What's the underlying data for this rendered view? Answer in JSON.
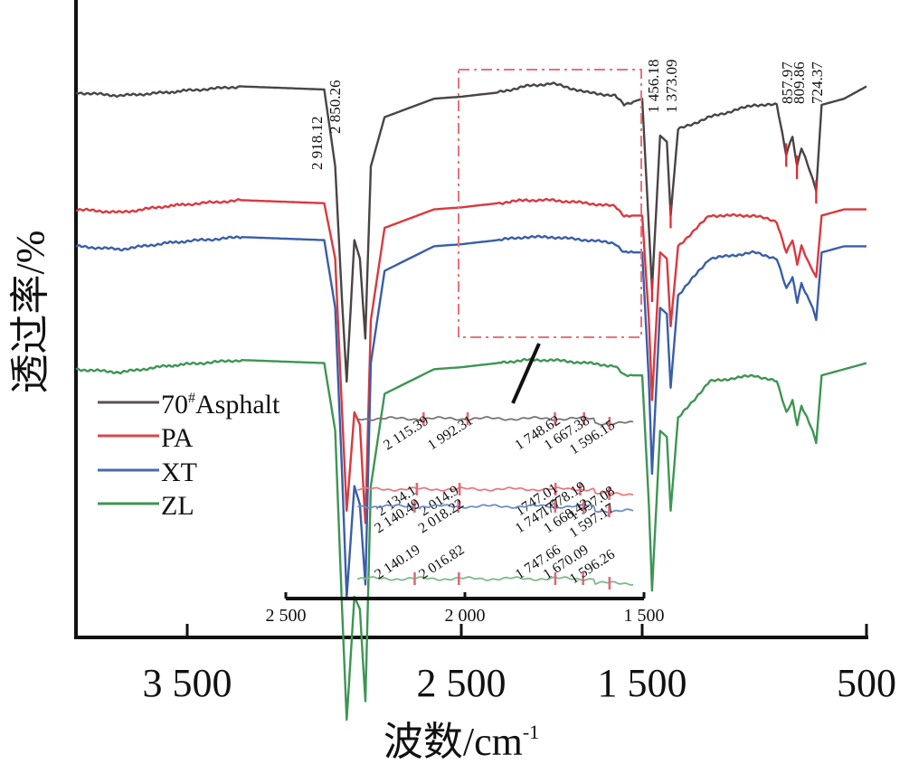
{
  "chart_data": {
    "type": "line",
    "title": "",
    "xlabel": "波数/cm⁻¹",
    "xlabel_main": "波数/cm",
    "xlabel_sup": "-1",
    "ylabel": "透过率/%",
    "x_reversed": true,
    "xlim": [
      4000,
      500
    ],
    "x_ticks": [
      3500,
      2500,
      1500,
      500
    ],
    "x_tick_labels": [
      "3 500",
      "2 500",
      "1 500",
      "500"
    ],
    "y_ticks": [],
    "grid": false,
    "legend_position": "lower-left",
    "series": [
      {
        "name": "70#Asphalt",
        "label_main": "70",
        "label_sup": "#",
        "label_rest": "Asphalt",
        "color": "#4a4444",
        "baseline": 0.82,
        "points": [
          [
            4000,
            0.82
          ],
          [
            3800,
            0.815
          ],
          [
            3600,
            0.82
          ],
          [
            3300,
            0.83
          ],
          [
            3000,
            0.825
          ],
          [
            2960,
            0.7
          ],
          [
            2935,
            0.48
          ],
          [
            2918.12,
            0.35
          ],
          [
            2890,
            0.58
          ],
          [
            2870,
            0.55
          ],
          [
            2850.26,
            0.42
          ],
          [
            2830,
            0.7
          ],
          [
            2780,
            0.78
          ],
          [
            2600,
            0.81
          ],
          [
            2300,
            0.82
          ],
          [
            2150,
            0.83
          ],
          [
            2000,
            0.835
          ],
          [
            1800,
            0.82
          ],
          [
            1650,
            0.815
          ],
          [
            1600,
            0.8
          ],
          [
            1500,
            0.81
          ],
          [
            1470,
            0.6
          ],
          [
            1456.18,
            0.5
          ],
          [
            1420,
            0.75
          ],
          [
            1390,
            0.74
          ],
          [
            1373.09,
            0.62
          ],
          [
            1340,
            0.76
          ],
          [
            1200,
            0.78
          ],
          [
            1000,
            0.8
          ],
          [
            900,
            0.8
          ],
          [
            857.97,
            0.72
          ],
          [
            830,
            0.75
          ],
          [
            809.86,
            0.7
          ],
          [
            790,
            0.73
          ],
          [
            740,
            0.68
          ],
          [
            724.37,
            0.66
          ],
          [
            700,
            0.8
          ],
          [
            600,
            0.81
          ],
          [
            500,
            0.83
          ]
        ],
        "annotated_peaks": [
          "2 918.12",
          "2 850.26",
          "1 456.18",
          "1 373.09",
          "857.97",
          "809.86",
          "724.37"
        ]
      },
      {
        "name": "PA",
        "color": "#d9393e",
        "points": [
          [
            4000,
            0.63
          ],
          [
            3800,
            0.625
          ],
          [
            3600,
            0.635
          ],
          [
            3300,
            0.645
          ],
          [
            3000,
            0.64
          ],
          [
            2960,
            0.55
          ],
          [
            2935,
            0.3
          ],
          [
            2918,
            0.14
          ],
          [
            2890,
            0.3
          ],
          [
            2870,
            0.28
          ],
          [
            2850,
            0.12
          ],
          [
            2830,
            0.45
          ],
          [
            2780,
            0.6
          ],
          [
            2600,
            0.63
          ],
          [
            2300,
            0.64
          ],
          [
            2150,
            0.645
          ],
          [
            2000,
            0.645
          ],
          [
            1800,
            0.64
          ],
          [
            1650,
            0.635
          ],
          [
            1600,
            0.62
          ],
          [
            1500,
            0.62
          ],
          [
            1470,
            0.45
          ],
          [
            1456,
            0.32
          ],
          [
            1420,
            0.56
          ],
          [
            1390,
            0.55
          ],
          [
            1373,
            0.44
          ],
          [
            1340,
            0.57
          ],
          [
            1200,
            0.62
          ],
          [
            1000,
            0.62
          ],
          [
            900,
            0.61
          ],
          [
            857,
            0.56
          ],
          [
            830,
            0.58
          ],
          [
            809,
            0.54
          ],
          [
            790,
            0.57
          ],
          [
            740,
            0.53
          ],
          [
            724,
            0.52
          ],
          [
            700,
            0.62
          ],
          [
            600,
            0.63
          ],
          [
            500,
            0.63
          ]
        ]
      },
      {
        "name": "XT",
        "color": "#3a5ea8",
        "points": [
          [
            4000,
            0.57
          ],
          [
            3800,
            0.565
          ],
          [
            3600,
            0.575
          ],
          [
            3300,
            0.585
          ],
          [
            3000,
            0.58
          ],
          [
            2960,
            0.47
          ],
          [
            2935,
            0.2
          ],
          [
            2918,
            0.0
          ],
          [
            2890,
            0.18
          ],
          [
            2870,
            0.15
          ],
          [
            2850,
            0.02
          ],
          [
            2830,
            0.38
          ],
          [
            2780,
            0.53
          ],
          [
            2600,
            0.57
          ],
          [
            2300,
            0.58
          ],
          [
            2150,
            0.585
          ],
          [
            2000,
            0.585
          ],
          [
            1800,
            0.58
          ],
          [
            1650,
            0.575
          ],
          [
            1600,
            0.56
          ],
          [
            1500,
            0.56
          ],
          [
            1470,
            0.35
          ],
          [
            1456,
            0.2
          ],
          [
            1420,
            0.47
          ],
          [
            1390,
            0.46
          ],
          [
            1373,
            0.34
          ],
          [
            1340,
            0.49
          ],
          [
            1200,
            0.55
          ],
          [
            1000,
            0.56
          ],
          [
            900,
            0.55
          ],
          [
            857,
            0.5
          ],
          [
            830,
            0.52
          ],
          [
            809,
            0.48
          ],
          [
            790,
            0.51
          ],
          [
            740,
            0.47
          ],
          [
            724,
            0.45
          ],
          [
            700,
            0.56
          ],
          [
            600,
            0.57
          ],
          [
            500,
            0.57
          ]
        ]
      },
      {
        "name": "ZL",
        "color": "#3e9554",
        "points": [
          [
            4000,
            0.37
          ],
          [
            3800,
            0.365
          ],
          [
            3600,
            0.375
          ],
          [
            3300,
            0.385
          ],
          [
            3000,
            0.38
          ],
          [
            2960,
            0.27
          ],
          [
            2935,
            -0.02
          ],
          [
            2918,
            -0.2
          ],
          [
            2890,
            0.0
          ],
          [
            2870,
            -0.02
          ],
          [
            2850,
            -0.17
          ],
          [
            2830,
            0.18
          ],
          [
            2780,
            0.33
          ],
          [
            2600,
            0.37
          ],
          [
            2300,
            0.38
          ],
          [
            2150,
            0.385
          ],
          [
            2000,
            0.385
          ],
          [
            1800,
            0.38
          ],
          [
            1650,
            0.375
          ],
          [
            1600,
            0.36
          ],
          [
            1500,
            0.36
          ],
          [
            1470,
            0.15
          ],
          [
            1456,
            0.01
          ],
          [
            1420,
            0.27
          ],
          [
            1390,
            0.26
          ],
          [
            1373,
            0.14
          ],
          [
            1340,
            0.29
          ],
          [
            1200,
            0.35
          ],
          [
            1000,
            0.36
          ],
          [
            900,
            0.35
          ],
          [
            857,
            0.3
          ],
          [
            830,
            0.32
          ],
          [
            809,
            0.28
          ],
          [
            790,
            0.31
          ],
          [
            740,
            0.27
          ],
          [
            724,
            0.25
          ],
          [
            700,
            0.36
          ],
          [
            600,
            0.37
          ],
          [
            500,
            0.38
          ]
        ]
      }
    ],
    "zoom_box": {
      "x_range": [
        2350,
        1500
      ],
      "style": "dash-dot",
      "color": "#e8727a"
    },
    "inset": {
      "xlim": [
        2500,
        1500
      ],
      "x_ticks": [
        2500,
        2000,
        1500
      ],
      "x_tick_labels": [
        "2 500",
        "2 000",
        "1 500"
      ],
      "x_range_drawn": [
        2300,
        1530
      ],
      "marker_color": "#e06a75",
      "series": [
        {
          "name": "70#Asphalt",
          "color": "#7a7272",
          "markers": [
            2115.39,
            1992.31,
            1748.62,
            1667.38,
            1596.15
          ],
          "labels": [
            "2 115.39",
            "1 992.31",
            "1 748.62",
            "1 667.38",
            "1 596.15"
          ]
        },
        {
          "name": "PA",
          "color": "#e87a80",
          "markers": [
            2134.1,
            2014.9,
            1747.01,
            1678.19,
            1597.08
          ],
          "labels": [
            "2 134.1",
            "2 014.9",
            "1747.01",
            "1 678.19",
            "1 597.08"
          ]
        },
        {
          "name": "XT",
          "color": "#6f8cc6",
          "markers": [
            2140.49,
            2018.22,
            1747.77,
            1668.42,
            1597.17
          ],
          "labels": [
            "2 140.49",
            "2 018.22",
            "1 747.77",
            "1 668.42",
            "1 597.17"
          ]
        },
        {
          "name": "ZL",
          "color": "#7cbb8a",
          "markers": [
            2140.19,
            2016.82,
            1747.66,
            1670.09,
            1596.26
          ],
          "labels": [
            "2 140.19",
            "2 016.82",
            "1 747.66",
            "1 670.09",
            "1 596.26"
          ]
        }
      ]
    }
  }
}
